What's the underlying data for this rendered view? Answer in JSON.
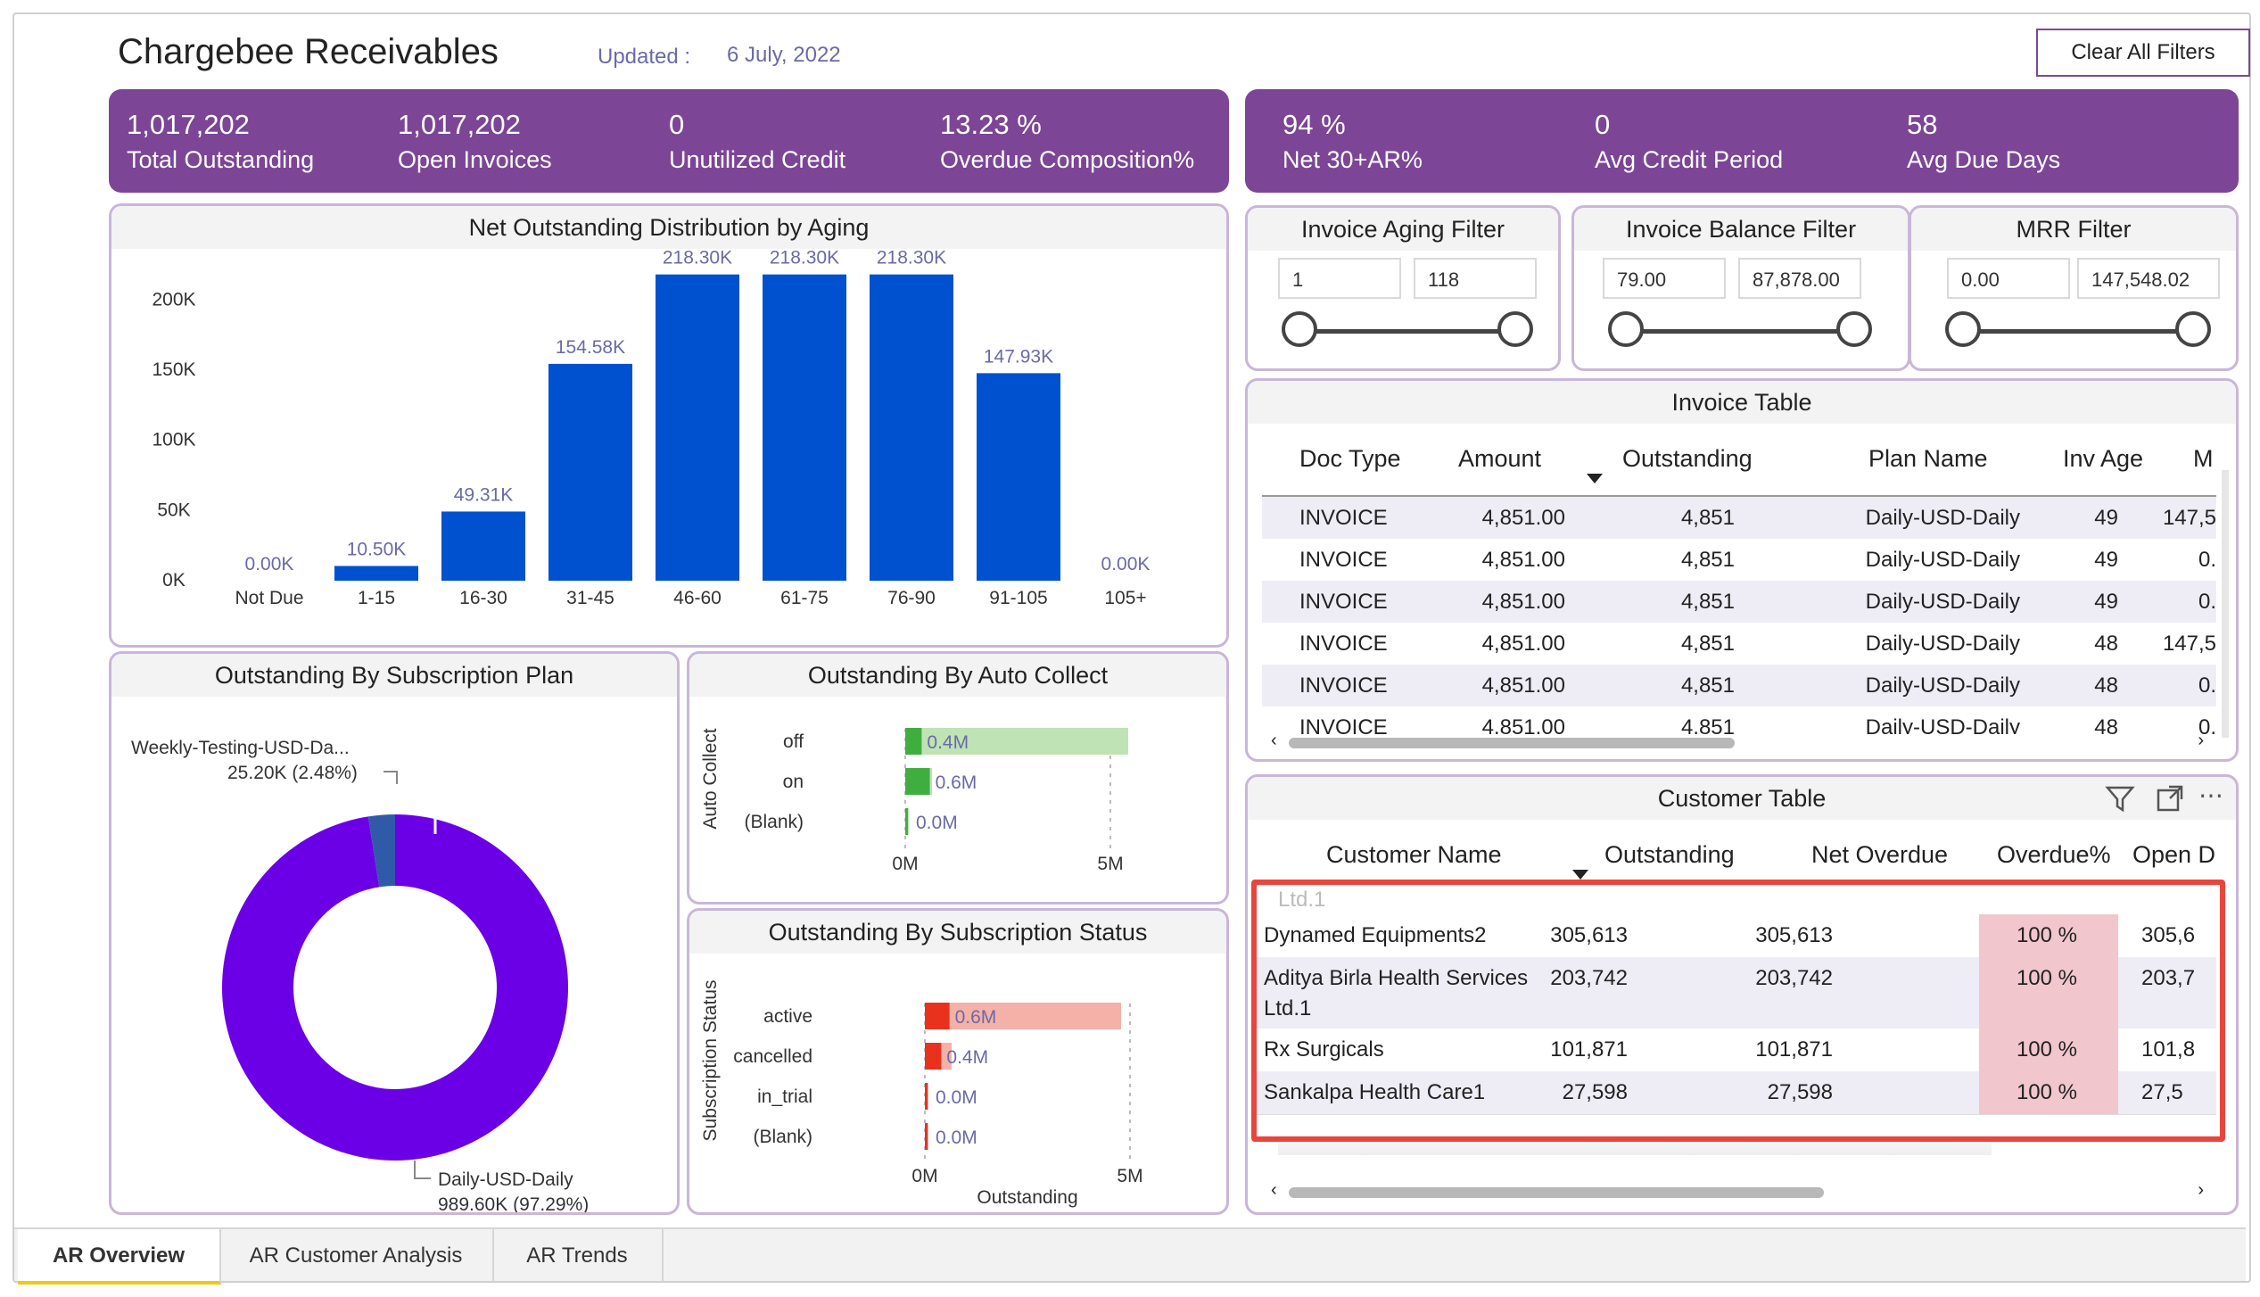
{
  "header": {
    "title": "Chargebee Receivables",
    "updated_label": "Updated :",
    "updated_value": "6 July, 2022",
    "clear_filters": "Clear All Filters"
  },
  "kpis_left": [
    {
      "value": "1,017,202",
      "label": "Total Outstanding"
    },
    {
      "value": "1,017,202",
      "label": "Open Invoices"
    },
    {
      "value": "0",
      "label": "Unutilized Credit"
    },
    {
      "value": "13.23 %",
      "label": "Overdue Composition%"
    }
  ],
  "kpis_right": [
    {
      "value": "94 %",
      "label": "Net 30+AR%"
    },
    {
      "value": "0",
      "label": "Avg Credit Period"
    },
    {
      "value": "58",
      "label": "Avg Due Days"
    }
  ],
  "aging_chart": {
    "title": "Net Outstanding Distribution by Aging",
    "yticks": [
      "0K",
      "50K",
      "100K",
      "150K",
      "200K"
    ],
    "chart_data": {
      "type": "bar",
      "categories": [
        "Not Due",
        "1-15",
        "16-30",
        "31-45",
        "46-60",
        "61-75",
        "76-90",
        "91-105",
        "105+"
      ],
      "values": [
        0,
        10.5,
        49.31,
        154.58,
        218.3,
        218.3,
        218.3,
        147.93,
        0
      ],
      "labels": [
        "0.00K",
        "10.50K",
        "49.31K",
        "154.58K",
        "218.30K",
        "218.30K",
        "218.30K",
        "147.93K",
        "0.00K"
      ],
      "ylim": [
        0,
        220
      ],
      "color": "#0051cf"
    }
  },
  "plan_chart": {
    "title": "Outstanding By Subscription Plan",
    "chart_data": {
      "type": "pie",
      "slices": [
        {
          "name": "Daily-USD-Daily",
          "value": 989.6,
          "label": "989.60K (97.29%)",
          "color": "#6b00e6"
        },
        {
          "name": "Weekly-Testing-USD-Da...",
          "value": 25.2,
          "label": "25.20K (2.48%)",
          "color": "#2f5aa8"
        }
      ]
    }
  },
  "auto_collect_chart": {
    "title": "Outstanding By Auto Collect",
    "axis_title": "Auto Collect",
    "xticks": [
      "0M",
      "5M"
    ],
    "chart_data": {
      "type": "bar",
      "categories": [
        "off",
        "on",
        "(Blank)"
      ],
      "values": [
        0.4,
        0.6,
        0.0
      ],
      "labels": [
        "0.4M",
        "0.6M",
        "0.0M"
      ],
      "color": "#3fae3f"
    }
  },
  "status_chart": {
    "title": "Outstanding By Subscription Status",
    "axis_title": "Subscription Status",
    "x_title": "Outstanding",
    "xticks": [
      "0M",
      "5M"
    ],
    "chart_data": {
      "type": "bar",
      "categories": [
        "active",
        "cancelled",
        "in_trial",
        "(Blank)"
      ],
      "values": [
        0.6,
        0.4,
        0.0,
        0.0
      ],
      "labels": [
        "0.6M",
        "0.4M",
        "0.0M",
        "0.0M"
      ],
      "color": "#e8321e"
    }
  },
  "filters": [
    {
      "title": "Invoice Aging Filter",
      "min": "1",
      "max": "118"
    },
    {
      "title": "Invoice Balance Filter",
      "min": "79.00",
      "max": "87,878.00"
    },
    {
      "title": "MRR Filter",
      "min": "0.00",
      "max": "147,548.02"
    }
  ],
  "invoice_table": {
    "title": "Invoice Table",
    "columns": [
      "Doc Type",
      "Amount",
      "Outstanding",
      "Plan Name",
      "Inv Age",
      "M"
    ],
    "rows": [
      [
        "INVOICE",
        "4,851.00",
        "4,851",
        "Daily-USD-Daily",
        "49",
        "147,5"
      ],
      [
        "INVOICE",
        "4,851.00",
        "4,851",
        "Daily-USD-Daily",
        "49",
        "0."
      ],
      [
        "INVOICE",
        "4,851.00",
        "4,851",
        "Daily-USD-Daily",
        "49",
        "0."
      ],
      [
        "INVOICE",
        "4,851.00",
        "4,851",
        "Daily-USD-Daily",
        "48",
        "147,5"
      ],
      [
        "INVOICE",
        "4,851.00",
        "4,851",
        "Daily-USD-Daily",
        "48",
        "0."
      ],
      [
        "INVOICE",
        "4,851.00",
        "4,851",
        "Daily-USD-Daily",
        "48",
        "0."
      ]
    ]
  },
  "customer_table": {
    "title": "Customer Table",
    "columns": [
      "Customer Name",
      "Outstanding",
      "Net Overdue",
      "Overdue%",
      "Open D"
    ],
    "partial_top": "Ltd.1",
    "rows": [
      {
        "name": "Dynamed Equipments2",
        "name2": "",
        "outstanding": "305,613",
        "overdue": "305,613",
        "pct": "100 %",
        "open": "305,6"
      },
      {
        "name": "Aditya Birla Health Services",
        "name2": "Ltd.1",
        "outstanding": "203,742",
        "overdue": "203,742",
        "pct": "100 %",
        "open": "203,7"
      },
      {
        "name": "Rx Surgicals",
        "name2": "",
        "outstanding": "101,871",
        "overdue": "101,871",
        "pct": "100 %",
        "open": "101,8"
      },
      {
        "name": "Sankalpa Health Care1",
        "name2": "",
        "outstanding": "27,598",
        "overdue": "27,598",
        "pct": "100 %",
        "open": "27,5"
      }
    ],
    "highlight_color": "#e8453c"
  },
  "tabs": [
    "AR Overview",
    "AR Customer Analysis",
    "AR Trends"
  ],
  "colors": {
    "kpi": "#7c4596",
    "panel_border": "#c9b6d8",
    "bar_blue": "#0051cf"
  }
}
